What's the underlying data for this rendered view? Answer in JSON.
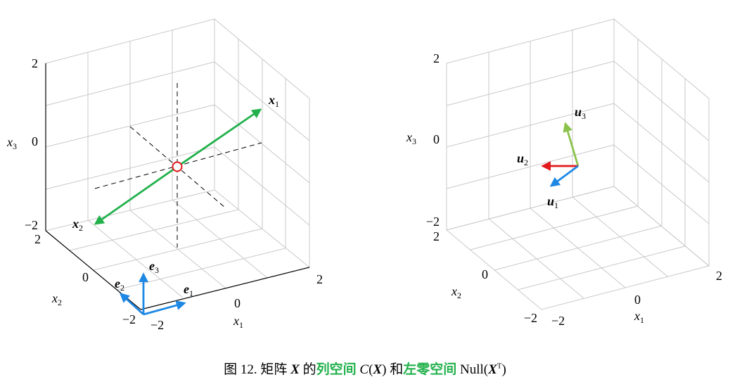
{
  "colors": {
    "grid": "#c8c8c8",
    "box_edge": "#000000",
    "x_vectors": "#22b14c",
    "e_vectors": "#1e88e5",
    "u1": "#1e88e5",
    "u2": "#e31a1c",
    "u3": "#8bc34a",
    "origin_marker": "#e31a1c",
    "caption_highlight": "#22b14c"
  },
  "left_plot": {
    "z_ticks": [
      "2",
      "0",
      "−2"
    ],
    "z_axis_label": "x",
    "z_axis_sub": "3",
    "y_ticks": [
      "2",
      "0",
      "−2"
    ],
    "y_axis_label": "x",
    "y_axis_sub": "2",
    "x_ticks": [
      "−2",
      "0",
      "2"
    ],
    "x_axis_label": "x",
    "x_axis_sub": "1",
    "vector_labels": {
      "x1": {
        "base": "x",
        "sub": "1"
      },
      "x2": {
        "base": "x",
        "sub": "2"
      },
      "e1": {
        "base": "e",
        "sub": "1"
      },
      "e2": {
        "base": "e",
        "sub": "2"
      },
      "e3": {
        "base": "e",
        "sub": "3"
      }
    }
  },
  "right_plot": {
    "z_ticks": [
      "2",
      "0",
      "−2"
    ],
    "z_axis_label": "x",
    "z_axis_sub": "3",
    "y_ticks": [
      "2",
      "0",
      "−2"
    ],
    "y_axis_label": "x",
    "y_axis_sub": "2",
    "x_ticks": [
      "−2",
      "0",
      "2"
    ],
    "x_axis_label": "x",
    "x_axis_sub": "1",
    "vector_labels": {
      "u1": {
        "base": "u",
        "sub": "1"
      },
      "u2": {
        "base": "u",
        "sub": "2"
      },
      "u3": {
        "base": "u",
        "sub": "3"
      }
    }
  },
  "caption": {
    "prefix": "图 12. 矩阵 ",
    "matrix": "X",
    "de": " 的",
    "col_space": "列空间",
    "c_fn": " C",
    "c_open": "(",
    "c_arg": "X",
    "c_close": ")",
    "he": " 和",
    "left_null": "左零空间",
    "null_fn": " Null(",
    "null_arg": "X",
    "null_sup": "T",
    "null_close": ")"
  }
}
